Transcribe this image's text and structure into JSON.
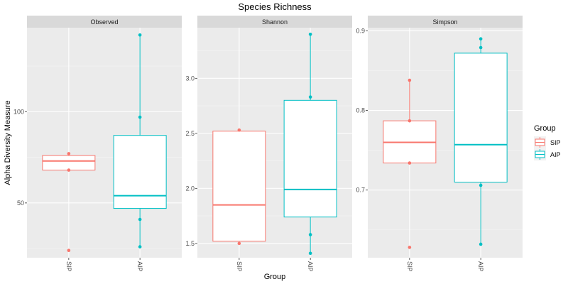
{
  "chart_data": {
    "type": "box",
    "title": "Species Richness",
    "xlabel": "Group",
    "ylabel": "Alpha Diversity Measure",
    "categories": [
      "SIP",
      "AIP"
    ],
    "colors": {
      "SIP": "#F8766D",
      "AIP": "#00BFC4"
    },
    "legend": {
      "title": "Group",
      "position": "right",
      "entries": [
        "SIP",
        "AIP"
      ]
    },
    "grid": true,
    "facets": [
      {
        "name": "Observed",
        "ylim": [
          20,
          146
        ],
        "yticks": [
          50,
          100
        ],
        "yticklabels": [
          "50",
          "100"
        ],
        "boxes": [
          {
            "group": "SIP",
            "q1": 68,
            "median": 73,
            "q3": 76,
            "whisker_low": 68,
            "whisker_high": 76,
            "points": [
              24,
              68,
              77
            ]
          },
          {
            "group": "AIP",
            "q1": 47,
            "median": 54,
            "q3": 87,
            "whisker_low": 26,
            "whisker_high": 142,
            "points": [
              26,
              41,
              97,
              142
            ]
          }
        ]
      },
      {
        "name": "Shannon",
        "ylim": [
          1.37,
          3.46
        ],
        "yticks": [
          1.5,
          2.0,
          2.5,
          3.0
        ],
        "yticklabels": [
          "1.5",
          "2.0",
          "2.5",
          "3.0"
        ],
        "boxes": [
          {
            "group": "SIP",
            "q1": 1.52,
            "median": 1.85,
            "q3": 2.52,
            "whisker_low": 1.52,
            "whisker_high": 2.52,
            "points": [
              1.5,
              2.53
            ]
          },
          {
            "group": "AIP",
            "q1": 1.74,
            "median": 1.99,
            "q3": 2.8,
            "whisker_low": 1.41,
            "whisker_high": 3.4,
            "points": [
              1.41,
              1.58,
              2.83,
              3.4
            ]
          }
        ]
      },
      {
        "name": "Simpson",
        "ylim": [
          0.615,
          0.904
        ],
        "yticks": [
          0.7,
          0.8,
          0.9
        ],
        "yticklabels": [
          "0.7",
          "0.8",
          "0.9"
        ],
        "boxes": [
          {
            "group": "SIP",
            "q1": 0.734,
            "median": 0.76,
            "q3": 0.787,
            "whisker_low": 0.734,
            "whisker_high": 0.838,
            "points": [
              0.628,
              0.734,
              0.787,
              0.838
            ]
          },
          {
            "group": "AIP",
            "q1": 0.71,
            "median": 0.757,
            "q3": 0.872,
            "whisker_low": 0.632,
            "whisker_high": 0.89,
            "points": [
              0.632,
              0.706,
              0.879,
              0.89
            ]
          }
        ]
      }
    ]
  }
}
